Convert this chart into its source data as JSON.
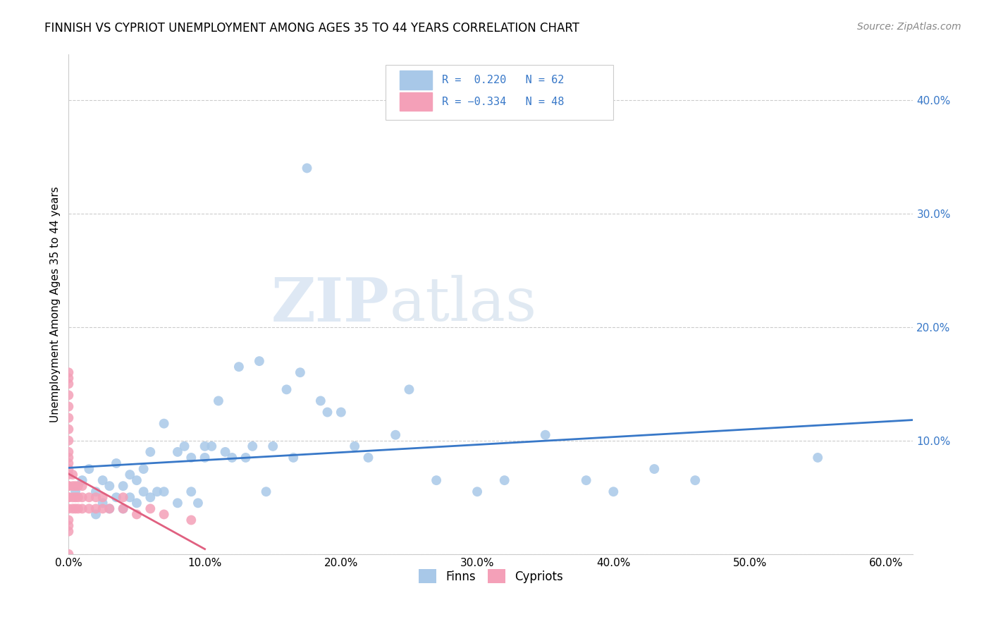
{
  "title": "FINNISH VS CYPRIOT UNEMPLOYMENT AMONG AGES 35 TO 44 YEARS CORRELATION CHART",
  "source": "Source: ZipAtlas.com",
  "ylabel": "Unemployment Among Ages 35 to 44 years",
  "xlim": [
    0.0,
    0.62
  ],
  "ylim": [
    0.0,
    0.44
  ],
  "xticks": [
    0.0,
    0.1,
    0.2,
    0.3,
    0.4,
    0.5,
    0.6
  ],
  "xtick_labels": [
    "0.0%",
    "10.0%",
    "20.0%",
    "30.0%",
    "40.0%",
    "50.0%",
    "60.0%"
  ],
  "yticks": [
    0.0,
    0.1,
    0.2,
    0.3,
    0.4
  ],
  "ytick_labels_right": [
    "",
    "10.0%",
    "20.0%",
    "30.0%",
    "40.0%"
  ],
  "finns_R": 0.22,
  "finns_N": 62,
  "cypriots_R": -0.334,
  "cypriots_N": 48,
  "finn_color": "#a8c8e8",
  "cypriot_color": "#f4a0b8",
  "finn_line_color": "#3878c8",
  "cypriot_line_color": "#e06080",
  "watermark_zip": "ZIP",
  "watermark_atlas": "atlas",
  "finns_x": [
    0.005,
    0.01,
    0.015,
    0.02,
    0.02,
    0.025,
    0.025,
    0.03,
    0.03,
    0.035,
    0.035,
    0.04,
    0.04,
    0.045,
    0.045,
    0.05,
    0.05,
    0.055,
    0.055,
    0.06,
    0.06,
    0.065,
    0.07,
    0.07,
    0.08,
    0.08,
    0.085,
    0.09,
    0.09,
    0.095,
    0.1,
    0.1,
    0.105,
    0.11,
    0.115,
    0.12,
    0.125,
    0.13,
    0.135,
    0.14,
    0.145,
    0.15,
    0.16,
    0.165,
    0.17,
    0.175,
    0.185,
    0.19,
    0.2,
    0.21,
    0.22,
    0.24,
    0.25,
    0.27,
    0.3,
    0.32,
    0.35,
    0.38,
    0.4,
    0.43,
    0.46,
    0.55
  ],
  "finns_y": [
    0.055,
    0.065,
    0.075,
    0.035,
    0.055,
    0.045,
    0.065,
    0.04,
    0.06,
    0.05,
    0.08,
    0.04,
    0.06,
    0.05,
    0.07,
    0.045,
    0.065,
    0.055,
    0.075,
    0.05,
    0.09,
    0.055,
    0.055,
    0.115,
    0.045,
    0.09,
    0.095,
    0.055,
    0.085,
    0.045,
    0.085,
    0.095,
    0.095,
    0.135,
    0.09,
    0.085,
    0.165,
    0.085,
    0.095,
    0.17,
    0.055,
    0.095,
    0.145,
    0.085,
    0.16,
    0.34,
    0.135,
    0.125,
    0.125,
    0.095,
    0.085,
    0.105,
    0.145,
    0.065,
    0.055,
    0.065,
    0.105,
    0.065,
    0.055,
    0.075,
    0.065,
    0.085
  ],
  "cypriots_x": [
    0.0,
    0.0,
    0.0,
    0.0,
    0.0,
    0.0,
    0.0,
    0.0,
    0.0,
    0.0,
    0.0,
    0.0,
    0.0,
    0.0,
    0.0,
    0.0,
    0.0,
    0.0,
    0.0,
    0.0,
    0.0,
    0.0,
    0.003,
    0.003,
    0.003,
    0.003,
    0.005,
    0.005,
    0.005,
    0.007,
    0.007,
    0.007,
    0.01,
    0.01,
    0.01,
    0.015,
    0.015,
    0.02,
    0.02,
    0.025,
    0.025,
    0.03,
    0.04,
    0.04,
    0.05,
    0.06,
    0.07,
    0.09
  ],
  "cypriots_y": [
    0.0,
    0.02,
    0.025,
    0.03,
    0.04,
    0.05,
    0.06,
    0.07,
    0.075,
    0.08,
    0.085,
    0.09,
    0.1,
    0.11,
    0.12,
    0.13,
    0.14,
    0.15,
    0.155,
    0.16,
    0.05,
    0.06,
    0.04,
    0.05,
    0.06,
    0.07,
    0.04,
    0.05,
    0.06,
    0.04,
    0.05,
    0.06,
    0.04,
    0.05,
    0.06,
    0.04,
    0.05,
    0.04,
    0.05,
    0.04,
    0.05,
    0.04,
    0.04,
    0.05,
    0.035,
    0.04,
    0.035,
    0.03
  ],
  "finn_trend_x": [
    0.0,
    0.62
  ],
  "cyp_trend_x": [
    0.0,
    0.1
  ],
  "legend_finn_text": "R =  0.220   N = 62",
  "legend_cyp_text": "R = −0.334   N = 48",
  "legend_color": "#3878c8"
}
